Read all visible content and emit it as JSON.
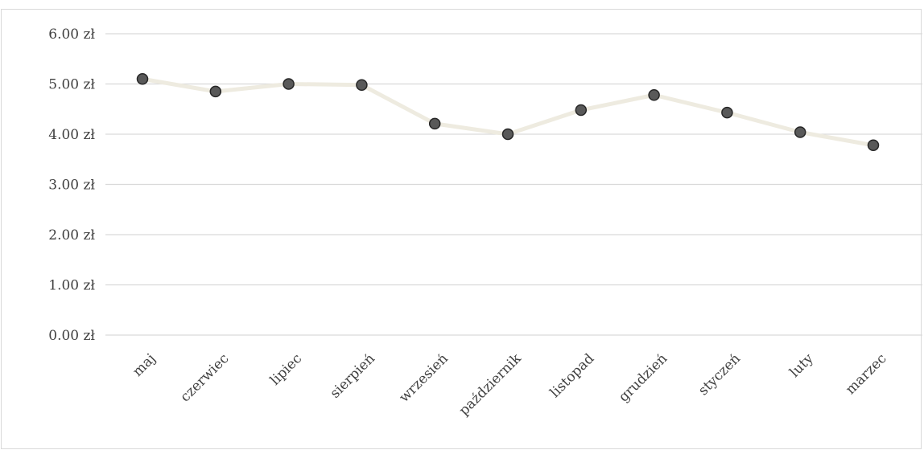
{
  "chart_data": {
    "type": "line",
    "title": "",
    "xlabel": "",
    "ylabel": "",
    "categories": [
      "maj",
      "czerwiec",
      "lipiec",
      "sierpień",
      "wrzesień",
      "październik",
      "listopad",
      "grudzień",
      "styczeń",
      "luty",
      "marzec"
    ],
    "series": [
      {
        "values": [
          5.1,
          4.85,
          5.0,
          4.98,
          4.21,
          4.0,
          4.48,
          4.78,
          4.43,
          4.04,
          3.78
        ]
      }
    ],
    "ylim": [
      0,
      6
    ],
    "y_ticks": [
      0,
      1,
      2,
      3,
      4,
      5,
      6
    ],
    "y_tick_labels": [
      "0.00 zł",
      "1.00 zł",
      "2.00 zł",
      "3.00 zł",
      "4.00 zł",
      "5.00 zł",
      "6.00 zł"
    ],
    "grid": true,
    "legend": "none",
    "colors": {
      "line": "#eeebe0",
      "marker_fill": "#595959",
      "marker_stroke": "#262626",
      "grid": "#d9d9d9",
      "text": "#404040"
    }
  }
}
